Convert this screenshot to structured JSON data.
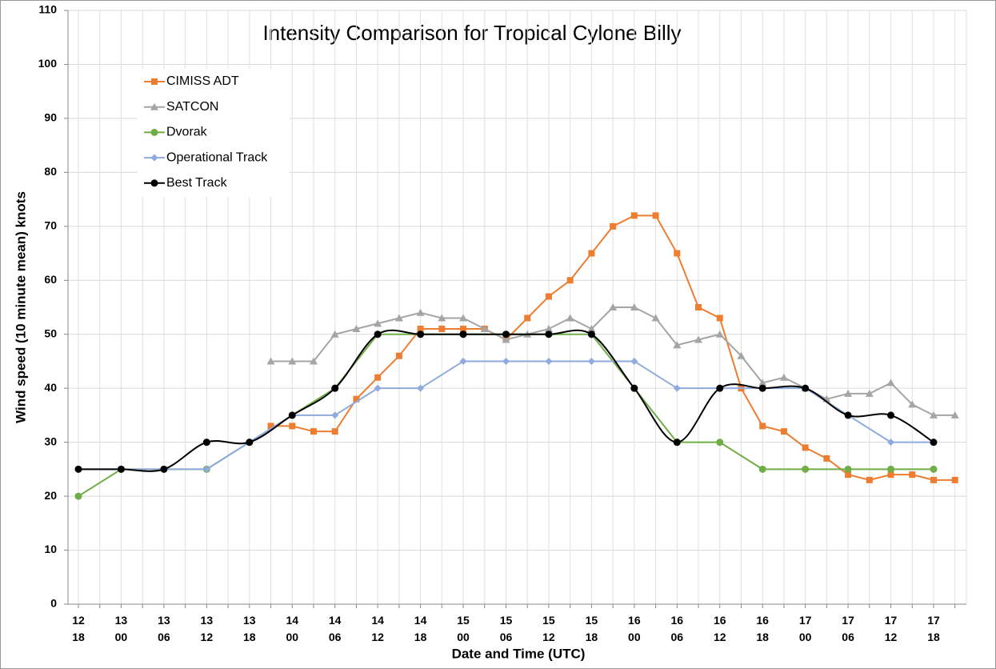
{
  "chart_data": {
    "type": "line",
    "title": "Intensity Comparison for Tropical Cylone Billy",
    "x_label": "Date and Time (UTC)",
    "y_label": "Wind speed (10 minute mean) knots",
    "categories": [
      "12\n18",
      null,
      "13\n00",
      null,
      "13\n06",
      null,
      "13\n12",
      null,
      "13\n18",
      null,
      "14\n00",
      null,
      "14\n06",
      null,
      "14\n12",
      null,
      "14\n18",
      null,
      "15\n00",
      null,
      "15\n06",
      null,
      "15\n12",
      null,
      "15\n18",
      null,
      "16\n00",
      null,
      "16\n06",
      null,
      "16\n12",
      null,
      "16\n18",
      null,
      "17\n00",
      null,
      "17\n06",
      null,
      "17\n12",
      null,
      "17\n18",
      null
    ],
    "ylim": [
      0,
      110
    ],
    "yticks": [
      0,
      10,
      20,
      30,
      40,
      50,
      60,
      70,
      80,
      90,
      100,
      110
    ],
    "grid": true,
    "span_gaps": true,
    "legend": "upper left",
    "series": [
      {
        "name": "CIMISS ADT",
        "color": "#ED7D31",
        "marker": "square",
        "values": [
          null,
          null,
          null,
          null,
          null,
          null,
          null,
          null,
          null,
          33,
          33,
          32,
          32,
          38,
          42,
          46,
          51,
          51,
          51,
          51,
          49,
          53,
          57,
          60,
          65,
          70,
          72,
          72,
          65,
          55,
          53,
          40,
          33,
          32,
          29,
          27,
          24,
          23,
          24,
          24,
          23,
          23
        ]
      },
      {
        "name": "SATCON",
        "color": "#A5A5A5",
        "marker": "triangle",
        "values": [
          null,
          null,
          null,
          null,
          null,
          null,
          null,
          null,
          null,
          45,
          45,
          45,
          50,
          51,
          52,
          53,
          54,
          53,
          53,
          51,
          49,
          50,
          51,
          53,
          51,
          55,
          55,
          53,
          48,
          49,
          50,
          46,
          41,
          42,
          40,
          38,
          39,
          39,
          41,
          37,
          35,
          35
        ]
      },
      {
        "name": "Dvorak",
        "color": "#70AD47",
        "marker": "circle",
        "values": [
          20,
          null,
          25,
          null,
          25,
          null,
          25,
          null,
          30,
          null,
          35,
          null,
          40,
          null,
          50,
          null,
          50,
          null,
          50,
          null,
          50,
          null,
          50,
          null,
          50,
          null,
          40,
          null,
          30,
          null,
          30,
          null,
          25,
          null,
          25,
          null,
          25,
          null,
          25,
          null,
          25,
          null
        ]
      },
      {
        "name": "Operational Track",
        "color": "#8FAADC",
        "marker": "diamond",
        "values": [
          25,
          null,
          25,
          null,
          25,
          null,
          25,
          null,
          30,
          null,
          35,
          null,
          35,
          null,
          40,
          null,
          40,
          null,
          45,
          null,
          45,
          null,
          45,
          null,
          45,
          null,
          45,
          null,
          40,
          null,
          40,
          null,
          40,
          null,
          40,
          null,
          35,
          null,
          30,
          null,
          30,
          null
        ]
      },
      {
        "name": "Best Track",
        "color": "#000000",
        "marker": "circle",
        "smooth": true,
        "values": [
          25,
          null,
          25,
          null,
          25,
          null,
          30,
          null,
          30,
          null,
          35,
          null,
          40,
          null,
          50,
          null,
          50,
          null,
          50,
          null,
          50,
          null,
          50,
          null,
          50,
          null,
          40,
          null,
          30,
          null,
          40,
          null,
          40,
          null,
          40,
          null,
          35,
          null,
          35,
          null,
          30,
          null
        ]
      }
    ]
  }
}
